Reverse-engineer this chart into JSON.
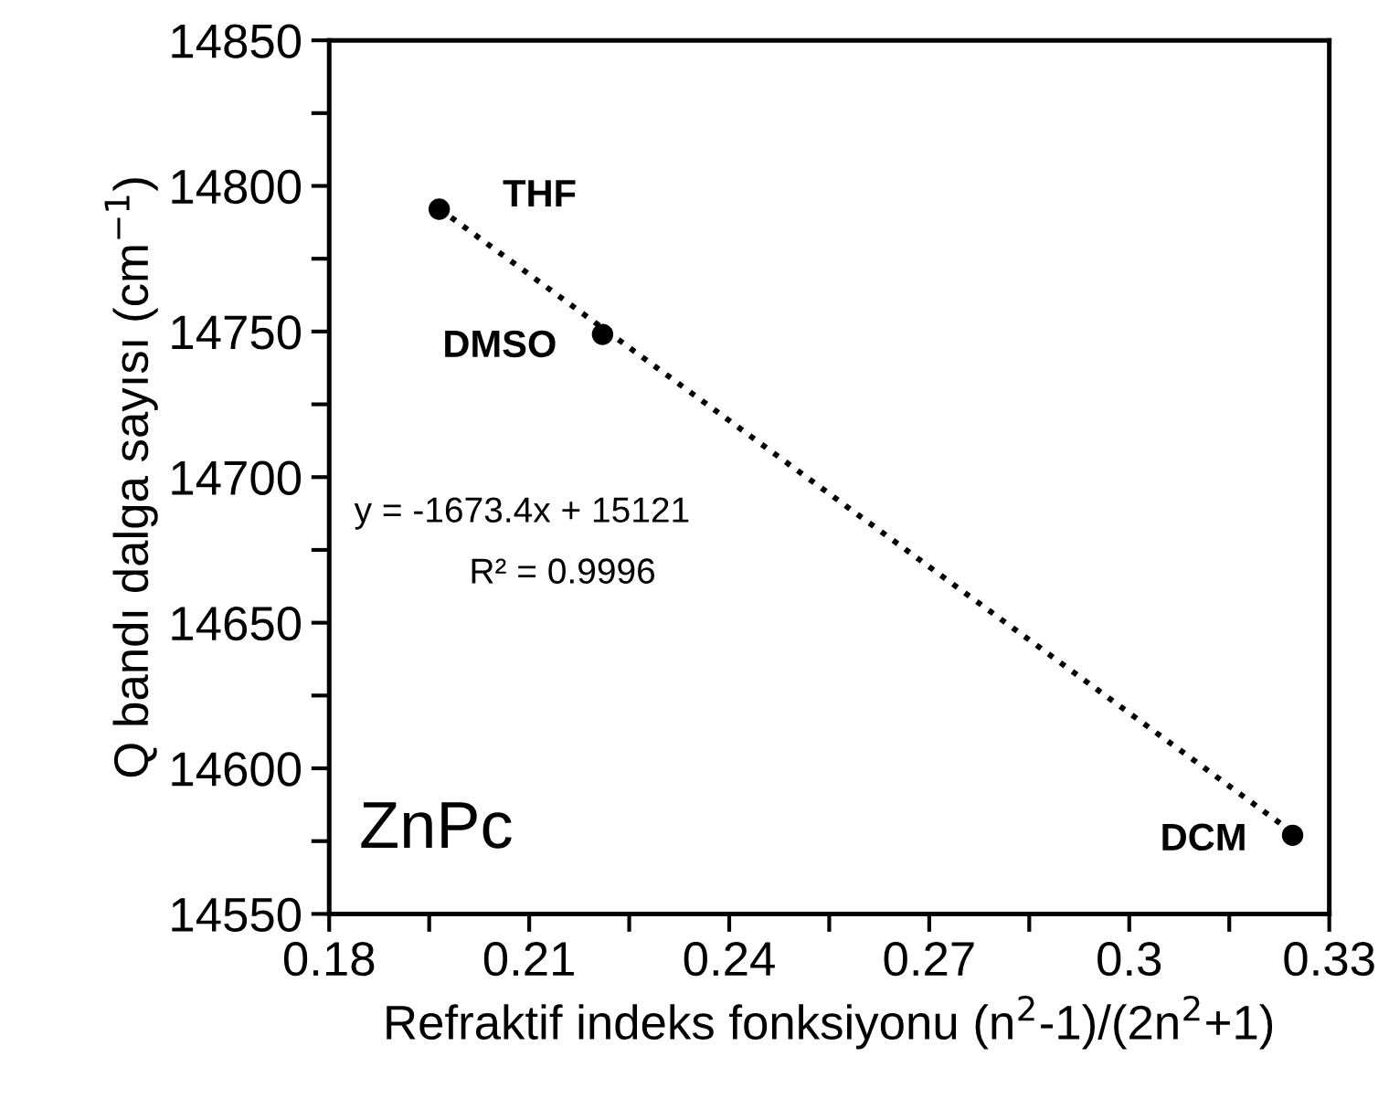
{
  "chart_data": {
    "type": "scatter",
    "xlabel": "Refraktif indeks fonksiyonu (n$^{2}$-1)/(2n$^{2}$+1)",
    "ylabel": "Q bandı dalga sayısı (cm$^{−1}$)",
    "series": [
      {
        "color": "#000000",
        "marker": "circle",
        "x": [
          0.1965,
          0.221,
          0.3245
        ],
        "values": [
          14792,
          14749,
          14577
        ]
      },
      {
        "type": "line",
        "color": "#000000",
        "marker": "none",
        "line_style": "dotted",
        "x": [
          0.1965,
          0.3245
        ],
        "values": [
          14792.2,
          14578.0
        ]
      }
    ],
    "annotations": [
      {
        "text": "THF",
        "x": 0.1965,
        "y": 14792
      },
      {
        "text": "DMSO",
        "x": 0.221,
        "y": 14749
      },
      {
        "text": "DCM",
        "x": 0.3245,
        "y": 14577
      },
      "y = -1673.4x + 15121",
      "R² = 0.9996",
      "ZnPc"
    ],
    "xlim": [
      0.18,
      0.33
    ],
    "xticks": [
      0.18,
      {
        "value": 0.195,
        "label": null
      },
      0.21,
      {
        "value": 0.225,
        "label": null
      },
      0.24,
      {
        "value": 0.255,
        "label": null
      },
      0.27,
      {
        "value": 0.285,
        "label": null
      },
      0.3,
      {
        "value": 0.315,
        "label": null
      },
      0.33
    ],
    "ylim": [
      14550,
      14850
    ],
    "yticks": [
      14550,
      {
        "value": 14575,
        "label": null
      },
      14600,
      {
        "value": 14625,
        "label": null
      },
      14650,
      {
        "value": 14675,
        "label": null
      },
      14700,
      {
        "value": 14725,
        "label": null
      },
      14750,
      {
        "value": 14775,
        "label": null
      },
      14800,
      {
        "value": 14825,
        "label": null
      },
      14850
    ],
    "grid": false,
    "legend": false
  }
}
